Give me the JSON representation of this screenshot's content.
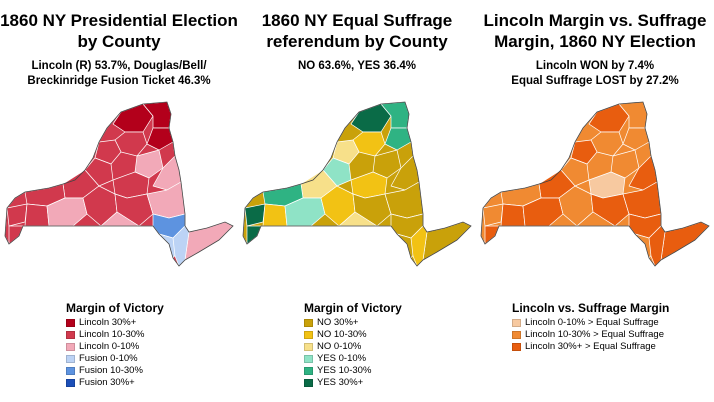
{
  "panels": [
    {
      "title_lines": [
        "1860 NY Presidential Election",
        "by County"
      ],
      "subtitle_lines": [
        "Lincoln (R) 53.7%, Douglas/Bell/",
        "Breckinridge Fusion Ticket 46.3%"
      ],
      "legend": {
        "title": "Margin of Victory",
        "items": [
          {
            "label": "Lincoln 30%+",
            "color": "#b3001b"
          },
          {
            "label": "Lincoln 10-30%",
            "color": "#d1394d"
          },
          {
            "label": "Lincoln 0-10%",
            "color": "#f2a9b8"
          },
          {
            "label": "Fusion 0-10%",
            "color": "#bcd3f5"
          },
          {
            "label": "Fusion 10-30%",
            "color": "#5d93e0"
          },
          {
            "label": "Fusion 30%+",
            "color": "#1c4fb8"
          }
        ]
      },
      "map_colors": {
        "base": "#d1394d",
        "accent": [
          "#b3001b",
          "#f2a9b8",
          "#bcd3f5",
          "#5d93e0"
        ]
      }
    },
    {
      "title_lines": [
        "1860 NY Equal Suffrage",
        "referendum by County"
      ],
      "subtitle_lines": [
        "NO 63.6%, YES 36.4%"
      ],
      "legend": {
        "title": "Margin of Victory",
        "items": [
          {
            "label": "NO 30%+",
            "color": "#c9a10a"
          },
          {
            "label": "NO 10-30%",
            "color": "#f2c214"
          },
          {
            "label": "NO 0-10%",
            "color": "#f7e08a"
          },
          {
            "label": "YES 0-10%",
            "color": "#8fe3c6"
          },
          {
            "label": "YES 10-30%",
            "color": "#2fb383"
          },
          {
            "label": "YES 30%+",
            "color": "#0a6b47"
          }
        ]
      },
      "map_colors": {
        "base": "#c9a10a",
        "accent": [
          "#f2c214",
          "#f7e08a",
          "#8fe3c6",
          "#2fb383",
          "#0a6b47"
        ]
      }
    },
    {
      "title_lines": [
        "Lincoln Margin vs. Suffrage",
        "Margin, 1860 NY Election"
      ],
      "subtitle_lines": [
        "Lincoln WON by 7.4%",
        "Equal Suffrage LOST by 27.2%"
      ],
      "legend": {
        "title": "Lincoln vs. Suffrage Margin",
        "items": [
          {
            "label": "Lincoln 0-10% > Equal Suffrage",
            "color": "#f7c9a0"
          },
          {
            "label": "Lincoln 10-30% > Equal Suffrage",
            "color": "#f08a32"
          },
          {
            "label": "Lincoln 30%+ > Equal Suffrage",
            "color": "#e85d0f"
          }
        ]
      },
      "map_colors": {
        "base": "#f08a32",
        "accent": [
          "#e85d0f",
          "#f7c9a0"
        ]
      }
    }
  ]
}
